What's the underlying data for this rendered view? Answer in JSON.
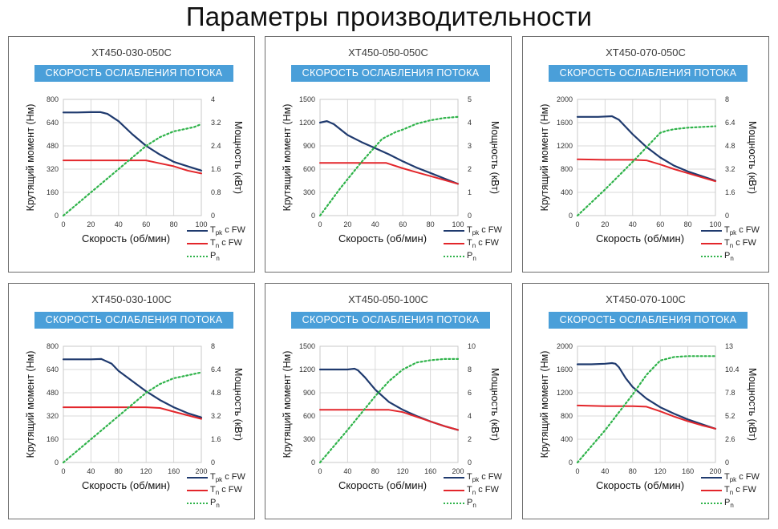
{
  "page": {
    "title": "Параметры производительности"
  },
  "colors": {
    "tpk": "#1f3a6e",
    "tn": "#e3262b",
    "pn": "#2fb34a",
    "banner": "#4a9fd9",
    "grid": "#d9d9d9"
  },
  "legend": [
    {
      "main": "T",
      "sub": "pk",
      "rest": " с FW",
      "key": "tpk"
    },
    {
      "main": "T",
      "sub": "n",
      "rest": " с FW",
      "key": "tn"
    },
    {
      "main": "P",
      "sub": "n",
      "rest": "",
      "key": "pn"
    }
  ],
  "chart_data": [
    {
      "type": "line",
      "title": "XT450-030-050C",
      "subtitle": "СКОРОСТЬ ОСЛАБЛЕНИЯ ПОТОКА",
      "xlabel": "Скорость (об/мин)",
      "ylabel": "Крутящий момент (Нм)",
      "y2label": "Мощность (кВт)",
      "xlim": [
        0,
        100
      ],
      "xticks": [
        0,
        20,
        40,
        60,
        80,
        100
      ],
      "ylim": [
        0,
        800
      ],
      "yticks": [
        0,
        160,
        320,
        480,
        640,
        800
      ],
      "y2lim": [
        0,
        4
      ],
      "y2ticks": [
        "0",
        "0.8",
        "1.6",
        "2.4",
        "3.2",
        "4"
      ],
      "series": [
        {
          "name": "Tpk с FW",
          "axis": "left",
          "x": [
            0,
            10,
            20,
            27,
            32,
            40,
            50,
            60,
            70,
            80,
            90,
            100
          ],
          "y": [
            710,
            710,
            712,
            712,
            700,
            650,
            560,
            480,
            420,
            370,
            340,
            310
          ]
        },
        {
          "name": "Tn с FW",
          "axis": "left",
          "x": [
            0,
            20,
            40,
            60,
            70,
            80,
            90,
            100
          ],
          "y": [
            380,
            380,
            380,
            380,
            360,
            340,
            310,
            290
          ]
        },
        {
          "name": "Pn",
          "axis": "right",
          "x": [
            0,
            20,
            40,
            60,
            70,
            80,
            90,
            95,
            100
          ],
          "y": [
            0,
            0.8,
            1.6,
            2.4,
            2.7,
            2.9,
            3.0,
            3.05,
            3.15
          ]
        }
      ]
    },
    {
      "type": "line",
      "title": "XT450-050-050C",
      "subtitle": "СКОРОСТЬ ОСЛАБЛЕНИЯ ПОТОКА",
      "xlabel": "Скорость (об/мин)",
      "ylabel": "Крутящий момент (Нм)",
      "y2label": "Мощность (кВт)",
      "xlim": [
        0,
        100
      ],
      "xticks": [
        0,
        20,
        40,
        60,
        80,
        100
      ],
      "ylim": [
        0,
        1500
      ],
      "yticks": [
        0,
        300,
        600,
        900,
        1200,
        1500
      ],
      "y2lim": [
        0,
        5
      ],
      "y2ticks": [
        "0",
        "1",
        "2",
        "3",
        "4",
        "5"
      ],
      "series": [
        {
          "name": "Tpk с FW",
          "axis": "left",
          "x": [
            0,
            5,
            10,
            20,
            30,
            40,
            50,
            60,
            70,
            80,
            90,
            100
          ],
          "y": [
            1200,
            1220,
            1180,
            1040,
            950,
            870,
            790,
            700,
            620,
            550,
            480,
            410
          ]
        },
        {
          "name": "Tn с FW",
          "axis": "left",
          "x": [
            0,
            20,
            40,
            48,
            60,
            70,
            80,
            90,
            100
          ],
          "y": [
            680,
            680,
            680,
            680,
            610,
            560,
            510,
            460,
            410
          ]
        },
        {
          "name": "Pn",
          "axis": "right",
          "x": [
            0,
            15,
            30,
            45,
            55,
            60,
            70,
            80,
            90,
            100
          ],
          "y": [
            0,
            1.2,
            2.3,
            3.3,
            3.6,
            3.7,
            3.95,
            4.1,
            4.2,
            4.25
          ]
        }
      ]
    },
    {
      "type": "line",
      "title": "XT450-070-050C",
      "subtitle": "СКОРОСТЬ ОСЛАБЛЕНИЯ ПОТОКА",
      "xlabel": "Скорость (об/мин)",
      "ylabel": "Крутящий момент (Нм)",
      "y2label": "Мощность (кВт)",
      "xlim": [
        0,
        100
      ],
      "xticks": [
        0,
        20,
        40,
        60,
        80,
        100
      ],
      "ylim": [
        0,
        2000
      ],
      "yticks": [
        0,
        400,
        800,
        1200,
        1600,
        2000
      ],
      "y2lim": [
        0,
        8
      ],
      "y2ticks": [
        "0",
        "1.6",
        "3.2",
        "4.8",
        "6.4",
        "8"
      ],
      "series": [
        {
          "name": "Tpk с FW",
          "axis": "left",
          "x": [
            0,
            15,
            25,
            30,
            40,
            50,
            60,
            70,
            80,
            90,
            100
          ],
          "y": [
            1700,
            1700,
            1710,
            1650,
            1400,
            1180,
            1000,
            860,
            760,
            680,
            600
          ]
        },
        {
          "name": "Tn с FW",
          "axis": "left",
          "x": [
            0,
            20,
            40,
            50,
            60,
            70,
            80,
            90,
            100
          ],
          "y": [
            970,
            960,
            960,
            950,
            880,
            800,
            730,
            660,
            590
          ]
        },
        {
          "name": "Pn",
          "axis": "right",
          "x": [
            0,
            20,
            40,
            50,
            60,
            65,
            70,
            80,
            90,
            100
          ],
          "y": [
            0,
            1.8,
            3.7,
            4.7,
            5.7,
            5.85,
            5.95,
            6.05,
            6.1,
            6.15
          ]
        }
      ]
    },
    {
      "type": "line",
      "title": "XT450-030-100C",
      "subtitle": "СКОРОСТЬ ОСЛАБЛЕНИЯ ПОТОКА",
      "xlabel": "Скорость (об/мин)",
      "ylabel": "Крутящий момент (Нм)",
      "y2label": "Мощность (кВт)",
      "xlim": [
        0,
        200
      ],
      "xticks": [
        0,
        40,
        80,
        120,
        160,
        200
      ],
      "ylim": [
        0,
        800
      ],
      "yticks": [
        0,
        160,
        320,
        480,
        640,
        800
      ],
      "y2lim": [
        0,
        8
      ],
      "y2ticks": [
        "0",
        "1.6",
        "3.2",
        "4.8",
        "6.4",
        "8"
      ],
      "series": [
        {
          "name": "Tpk с FW",
          "axis": "left",
          "x": [
            0,
            20,
            40,
            55,
            70,
            80,
            100,
            120,
            140,
            160,
            180,
            200
          ],
          "y": [
            710,
            710,
            710,
            712,
            680,
            630,
            560,
            490,
            430,
            380,
            340,
            310
          ]
        },
        {
          "name": "Tn с FW",
          "axis": "left",
          "x": [
            0,
            40,
            80,
            120,
            140,
            160,
            180,
            200
          ],
          "y": [
            380,
            380,
            380,
            380,
            375,
            350,
            325,
            300
          ]
        },
        {
          "name": "Pn",
          "axis": "right",
          "x": [
            0,
            40,
            80,
            120,
            140,
            160,
            180,
            200
          ],
          "y": [
            0,
            1.6,
            3.2,
            4.8,
            5.4,
            5.8,
            6.0,
            6.2
          ]
        }
      ]
    },
    {
      "type": "line",
      "title": "XT450-050-100C",
      "subtitle": "СКОРОСТЬ ОСЛАБЛЕНИЯ ПОТОКА",
      "xlabel": "Скорость (об/мин)",
      "ylabel": "Крутящий момент (Нм)",
      "y2label": "Мощность (кВт)",
      "xlim": [
        0,
        200
      ],
      "xticks": [
        0,
        40,
        80,
        120,
        160,
        200
      ],
      "ylim": [
        0,
        1500
      ],
      "yticks": [
        0,
        300,
        600,
        900,
        1200,
        1500
      ],
      "y2lim": [
        0,
        10
      ],
      "y2ticks": [
        "0",
        "2",
        "4",
        "6",
        "8",
        "10"
      ],
      "series": [
        {
          "name": "Tpk с FW",
          "axis": "left",
          "x": [
            0,
            20,
            40,
            50,
            55,
            65,
            80,
            100,
            120,
            140,
            160,
            180,
            200
          ],
          "y": [
            1200,
            1200,
            1200,
            1210,
            1190,
            1100,
            940,
            780,
            680,
            600,
            530,
            470,
            420
          ]
        },
        {
          "name": "Tn с FW",
          "axis": "left",
          "x": [
            0,
            40,
            80,
            100,
            120,
            140,
            160,
            180,
            200
          ],
          "y": [
            680,
            680,
            680,
            680,
            650,
            590,
            530,
            470,
            420
          ]
        },
        {
          "name": "Pn",
          "axis": "right",
          "x": [
            0,
            40,
            80,
            100,
            120,
            140,
            160,
            180,
            200
          ],
          "y": [
            0,
            2.8,
            5.7,
            7.0,
            8.0,
            8.6,
            8.8,
            8.9,
            8.9
          ]
        }
      ]
    },
    {
      "type": "line",
      "title": "XT450-070-100C",
      "subtitle": "СКОРОСТЬ ОСЛАБЛЕНИЯ ПОТОКА",
      "xlabel": "Скорость (об/мин)",
      "ylabel": "Крутящий момент (Нм)",
      "y2label": "Мощность (кВт)",
      "xlim": [
        0,
        200
      ],
      "xticks": [
        0,
        40,
        80,
        120,
        160,
        200
      ],
      "ylim": [
        0,
        2000
      ],
      "yticks": [
        0,
        400,
        800,
        1200,
        1600,
        2000
      ],
      "y2lim": [
        0,
        13
      ],
      "y2ticks": [
        "0",
        "2.6",
        "5.2",
        "7.8",
        "10.4",
        "13"
      ],
      "series": [
        {
          "name": "Tpk с FW",
          "axis": "left",
          "x": [
            0,
            20,
            40,
            50,
            55,
            60,
            70,
            80,
            100,
            120,
            140,
            160,
            180,
            200
          ],
          "y": [
            1690,
            1690,
            1700,
            1710,
            1700,
            1640,
            1450,
            1300,
            1100,
            950,
            840,
            740,
            660,
            580
          ]
        },
        {
          "name": "Tn с FW",
          "axis": "left",
          "x": [
            0,
            40,
            80,
            100,
            120,
            140,
            160,
            180,
            200
          ],
          "y": [
            980,
            970,
            970,
            960,
            880,
            790,
            710,
            640,
            580
          ]
        },
        {
          "name": "Pn",
          "axis": "right",
          "x": [
            0,
            40,
            80,
            100,
            120,
            140,
            160,
            180,
            200
          ],
          "y": [
            0,
            3.6,
            7.6,
            9.8,
            11.4,
            11.8,
            11.9,
            11.9,
            11.9
          ]
        }
      ]
    }
  ]
}
